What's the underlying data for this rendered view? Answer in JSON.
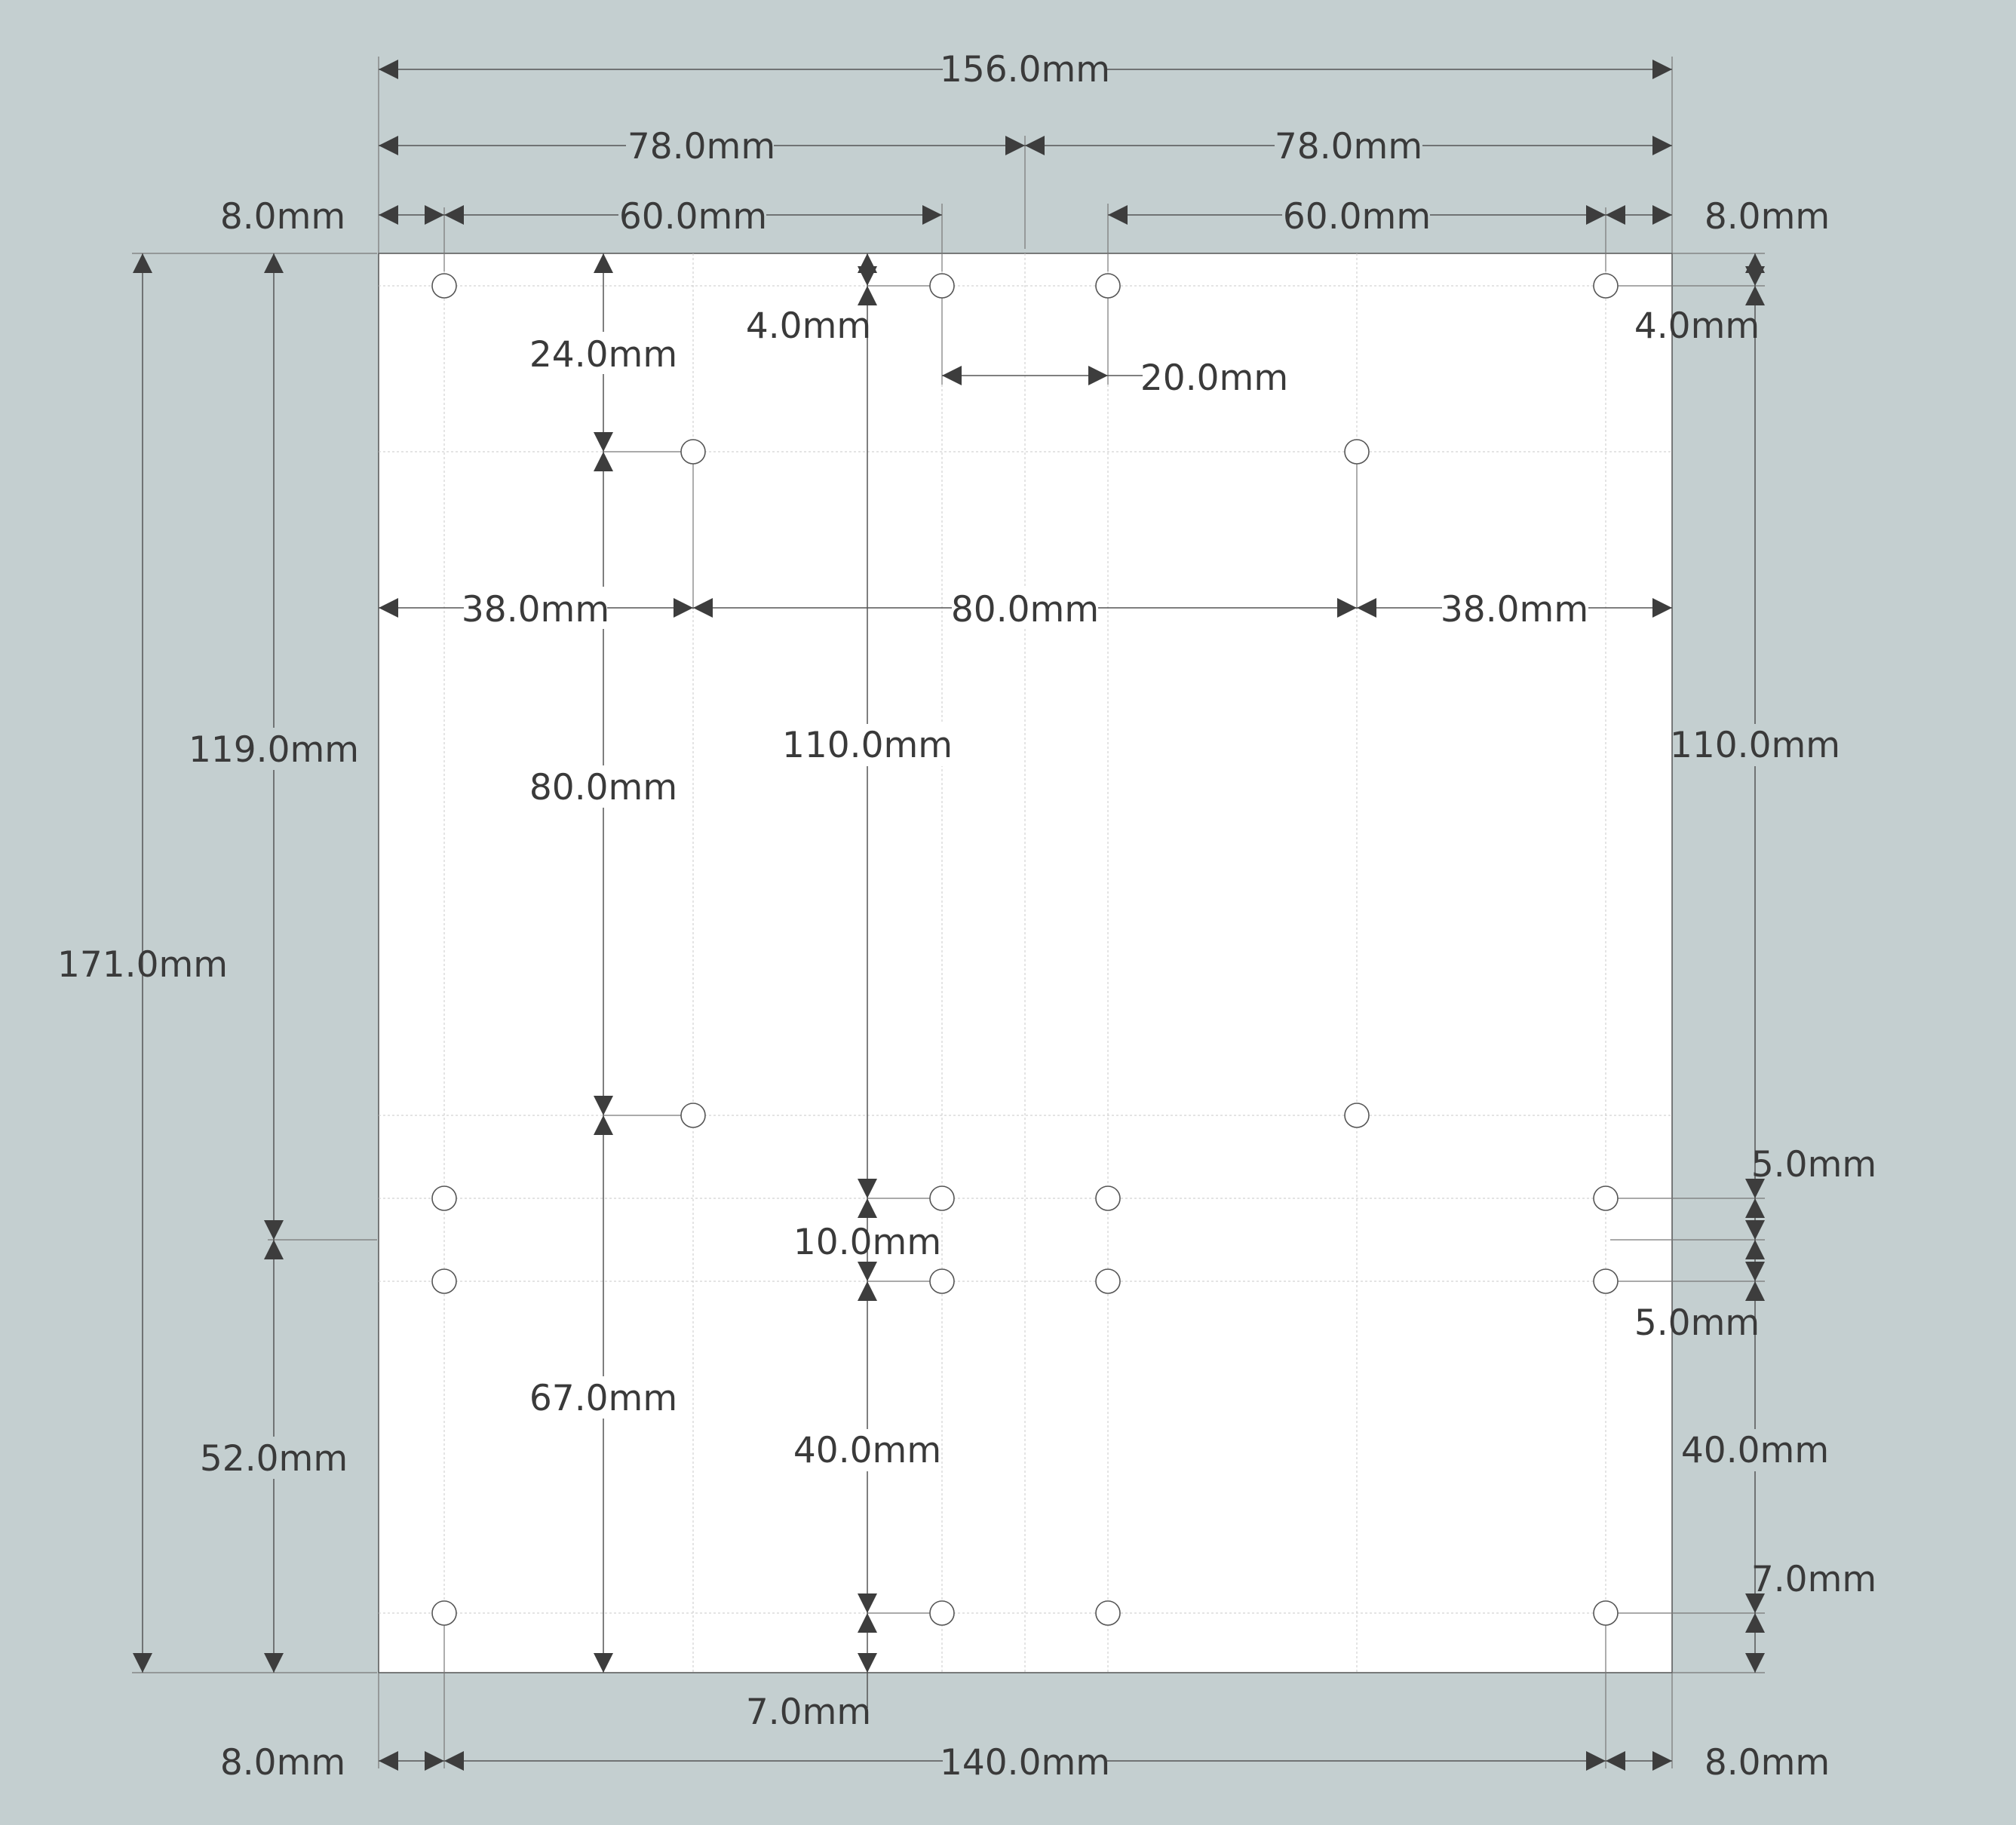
{
  "drawing": {
    "colors": {
      "background": "#c4cfd0",
      "sheet": "#ffffff",
      "line": "#555555",
      "text": "#3a3a3a"
    },
    "unit_suffix": "mm"
  },
  "dimensions": {
    "total_width": "156.0mm",
    "half_width_left": "78.0mm",
    "half_width_right": "78.0mm",
    "top_margin_left": "8.0mm",
    "top_span_left": "60.0mm",
    "top_span_right": "60.0mm",
    "top_margin_right": "8.0mm",
    "hole_gap_center": "20.0mm",
    "top_offset_left": "4.0mm",
    "top_offset_right": "4.0mm",
    "inner_hole_offset": "24.0mm",
    "inner_hole_spacing_v": "80.0mm",
    "left_inset": "38.0mm",
    "inner_hole_spacing_h": "80.0mm",
    "right_inset": "38.0mm",
    "total_height": "171.0mm",
    "upper_height": "119.0mm",
    "lower_height": "52.0mm",
    "upper_hole_span_left": "110.0mm",
    "upper_hole_span_right": "110.0mm",
    "middle_gap": "10.0mm",
    "lower_hole_span_left": "40.0mm",
    "lower_hole_span_right": "40.0mm",
    "inner_hole_bottom": "67.0mm",
    "bottom_offset_left": "7.0mm",
    "bottom_offset_right": "7.0mm",
    "mid_offset_upper": "5.0mm",
    "mid_offset_lower": "5.0mm",
    "bottom_margin_left": "8.0mm",
    "bottom_span": "140.0mm",
    "bottom_margin_right": "8.0mm"
  }
}
